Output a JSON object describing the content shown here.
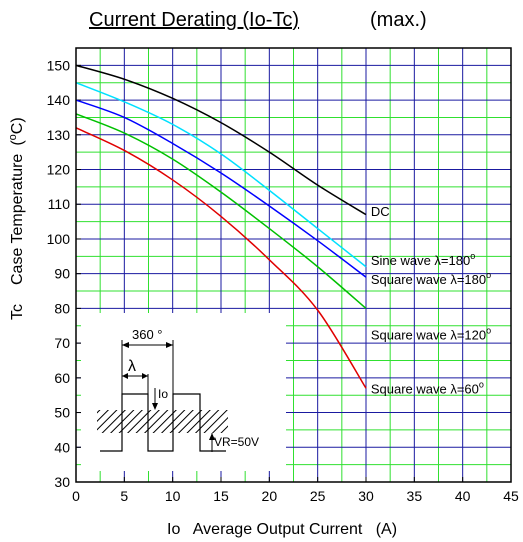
{
  "chart_data": {
    "type": "line",
    "title_main": "Current Derating  (Io-Tc)",
    "title_suffix": "(max.)",
    "xlabel": "Io   Average Output Current   (A)",
    "ylabel_left": "Tc",
    "ylabel": "Case Temperature",
    "ylabel_unit_open": "(",
    "ylabel_unit_deg": "o",
    "ylabel_unit_close": "C)",
    "xlim": [
      0,
      45
    ],
    "ylim": [
      30,
      155
    ],
    "x_ticks": [
      "0",
      "5",
      "10",
      "15",
      "20",
      "25",
      "30",
      "35",
      "40",
      "45"
    ],
    "y_ticks": [
      "30",
      "40",
      "50",
      "60",
      "70",
      "80",
      "90",
      "100",
      "110",
      "120",
      "130",
      "140",
      "150"
    ],
    "grid": true,
    "grid_colors": {
      "major": "#1a1aa0",
      "minor": "#30e030"
    },
    "series": [
      {
        "name": "DC",
        "color": "#000000",
        "x": [
          0,
          5,
          10,
          15,
          20,
          25,
          30
        ],
        "y": [
          150,
          146,
          140.5,
          133.5,
          125,
          115.5,
          107
        ]
      },
      {
        "name": "Sine wave",
        "color": "#00e0ff",
        "x": [
          0,
          5,
          10,
          15,
          20,
          25,
          30
        ],
        "y": [
          145,
          139.5,
          133,
          124.5,
          114,
          103,
          92
        ]
      },
      {
        "name": "Square wave",
        "color": "#0000ff",
        "x": [
          0,
          5,
          10,
          15,
          20,
          25,
          30
        ],
        "y": [
          140,
          135,
          127.5,
          119,
          109.5,
          99.5,
          89
        ]
      },
      {
        "name": "Square wave",
        "color": "#00c000",
        "x": [
          0,
          5,
          10,
          15,
          20,
          25,
          30
        ],
        "y": [
          136,
          130.5,
          123,
          113.5,
          103,
          92,
          80
        ]
      },
      {
        "name": "Square wave",
        "color": "#e00000",
        "x": [
          0,
          5,
          10,
          15,
          20,
          25,
          30
        ],
        "y": [
          132,
          125.5,
          117,
          106.5,
          94,
          79.5,
          57
        ]
      }
    ],
    "annotations": [
      {
        "text": "DC",
        "x": 30.5,
        "y": 108
      },
      {
        "text": "Sine wave ",
        "lambda": "λ",
        "suffix": "=180",
        "deg": "o",
        "x": 30.5,
        "y": 94
      },
      {
        "text": "Square wave ",
        "lambda": "λ",
        "suffix": "=180",
        "deg": "o",
        "x": 30.5,
        "y": 88.5
      },
      {
        "text": "Square wave ",
        "lambda": "λ",
        "suffix": "=120",
        "deg": "o",
        "x": 30.5,
        "y": 72.5
      },
      {
        "text": "Square wave ",
        "lambda": "λ",
        "suffix": "=60",
        "deg": "o",
        "x": 30.5,
        "y": 57
      }
    ]
  },
  "inset": {
    "period_label": "360 °",
    "lambda_label": "λ",
    "io_label": "Io",
    "vr_label": "VR=50V"
  }
}
